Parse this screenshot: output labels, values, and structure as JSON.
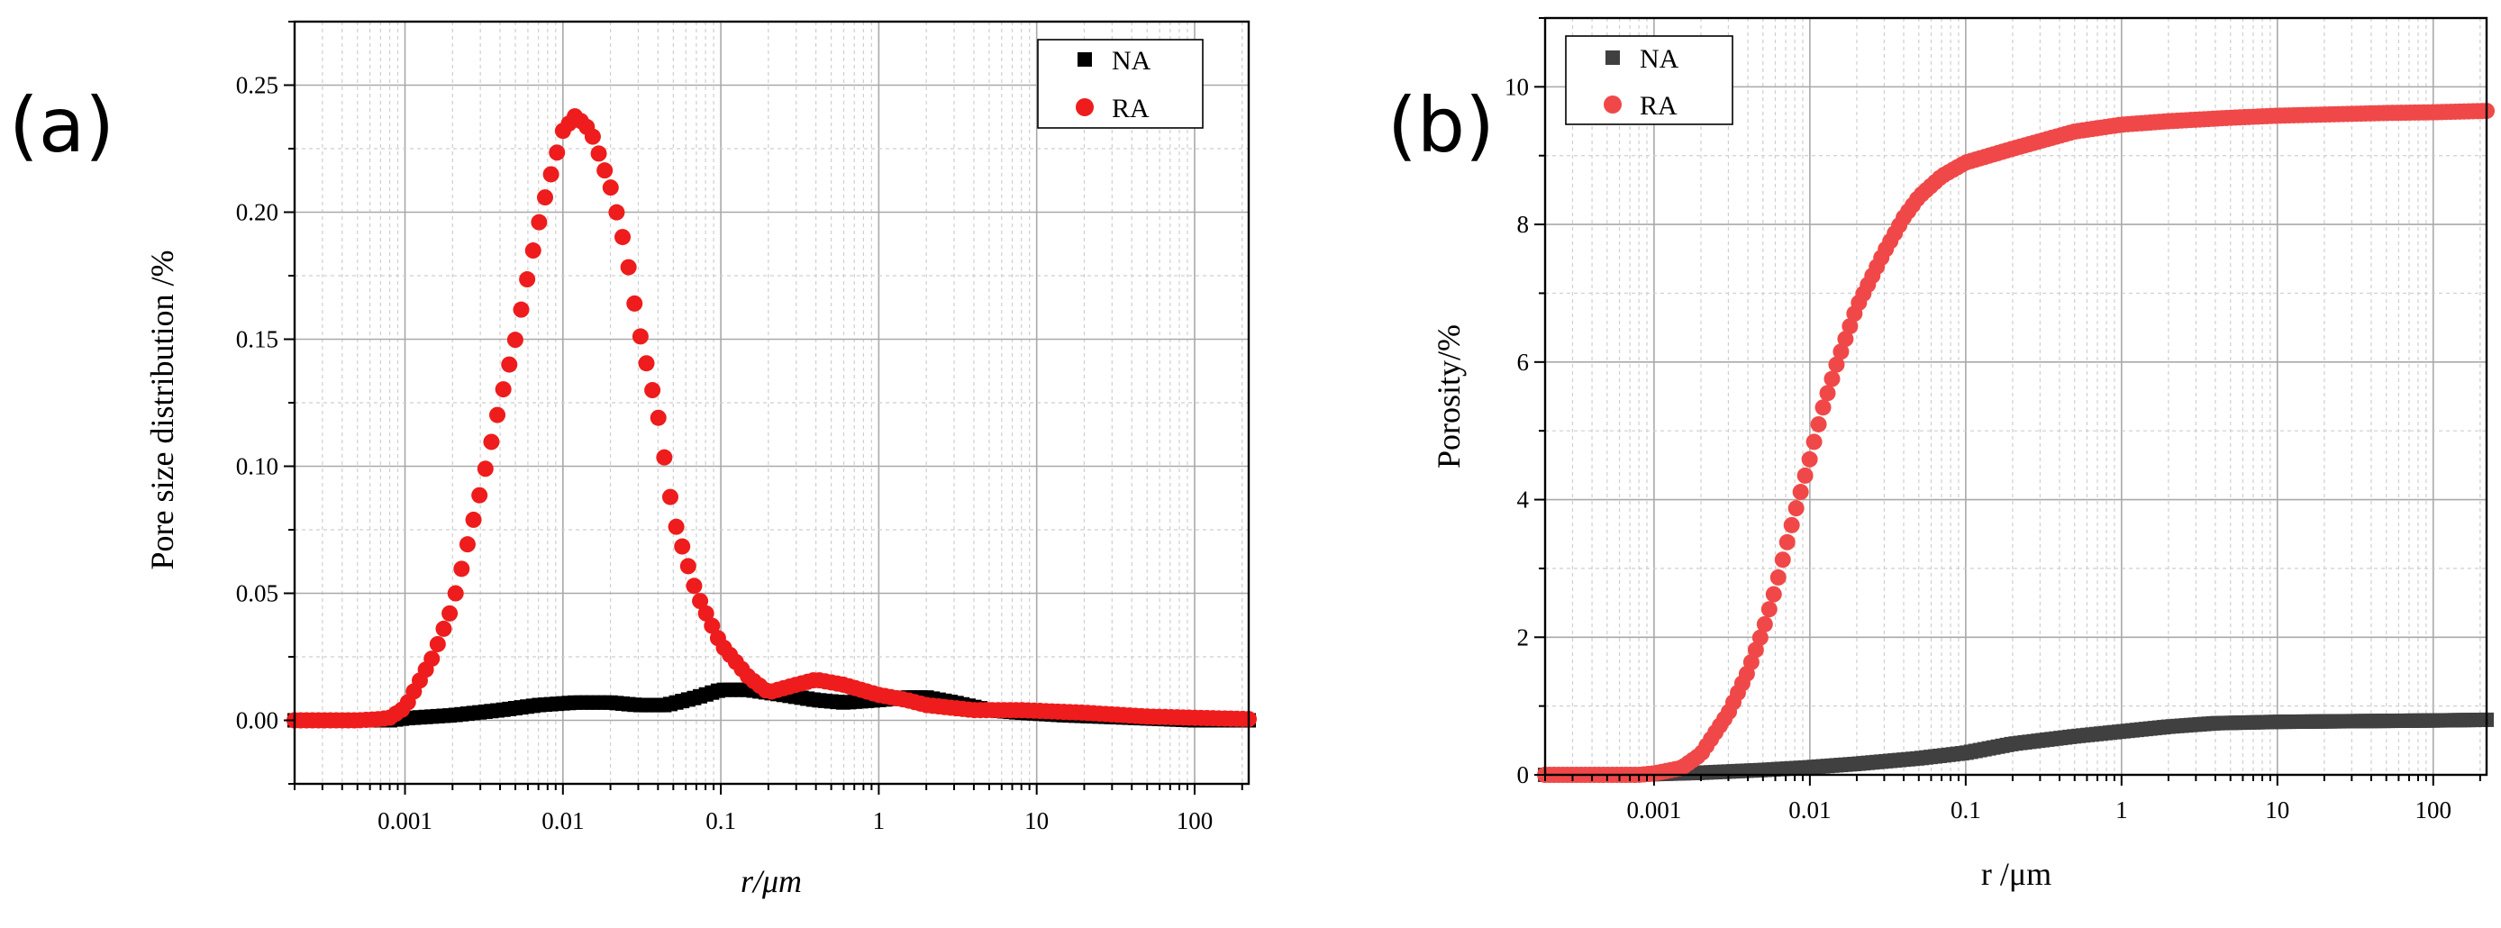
{
  "chart_data": [
    {
      "panel_label": "(a)",
      "type": "scatter",
      "xlabel": "r/μm",
      "ylabel": "Pore size distribution /%",
      "x_scale": "log",
      "xlim": [
        0.0002,
        220
      ],
      "ylim": [
        -0.025,
        0.275
      ],
      "x_ticks": [
        0.001,
        0.01,
        0.1,
        1,
        10,
        100
      ],
      "x_tick_labels": [
        "0.001",
        "0.01",
        "0.1",
        "1",
        "10",
        "100"
      ],
      "y_ticks": [
        0,
        0.05,
        0.1,
        0.15,
        0.2,
        0.25
      ],
      "y_tick_labels": [
        "0.00",
        "0.05",
        "0.10",
        "0.15",
        "0.20",
        "0.25"
      ],
      "grid": true,
      "legend_position": "top-right",
      "series": [
        {
          "name": "NA",
          "marker": "square",
          "color": "#000000",
          "points": [
            [
              0.0002,
              0
            ],
            [
              0.0005,
              0
            ],
            [
              0.0008,
              0
            ],
            [
              0.001,
              0.0008
            ],
            [
              0.002,
              0.002
            ],
            [
              0.004,
              0.004
            ],
            [
              0.007,
              0.006
            ],
            [
              0.012,
              0.007
            ],
            [
              0.02,
              0.007
            ],
            [
              0.03,
              0.006
            ],
            [
              0.045,
              0.006
            ],
            [
              0.07,
              0.009
            ],
            [
              0.1,
              0.012
            ],
            [
              0.15,
              0.012
            ],
            [
              0.25,
              0.01
            ],
            [
              0.4,
              0.008
            ],
            [
              0.6,
              0.007
            ],
            [
              1,
              0.008
            ],
            [
              1.5,
              0.009
            ],
            [
              2,
              0.009
            ],
            [
              3,
              0.007
            ],
            [
              5,
              0.004
            ],
            [
              8,
              0.003
            ],
            [
              15,
              0.002
            ],
            [
              40,
              0.001
            ],
            [
              100,
              0
            ],
            [
              220,
              0
            ]
          ]
        },
        {
          "name": "RA",
          "marker": "circle",
          "color": "#ee1c1c",
          "points": [
            [
              0.0002,
              0
            ],
            [
              0.0005,
              0
            ],
            [
              0.0007,
              0.0005
            ],
            [
              0.0008,
              0.001
            ],
            [
              0.001,
              0.005
            ],
            [
              0.0015,
              0.025
            ],
            [
              0.002,
              0.045
            ],
            [
              0.003,
              0.09
            ],
            [
              0.004,
              0.125
            ],
            [
              0.005,
              0.15
            ],
            [
              0.006,
              0.175
            ],
            [
              0.007,
              0.195
            ],
            [
              0.008,
              0.21
            ],
            [
              0.01,
              0.232
            ],
            [
              0.012,
              0.238
            ],
            [
              0.015,
              0.232
            ],
            [
              0.02,
              0.21
            ],
            [
              0.025,
              0.185
            ],
            [
              0.03,
              0.155
            ],
            [
              0.04,
              0.12
            ],
            [
              0.05,
              0.08
            ],
            [
              0.07,
              0.05
            ],
            [
              0.1,
              0.03
            ],
            [
              0.15,
              0.017
            ],
            [
              0.2,
              0.011
            ],
            [
              0.3,
              0.014
            ],
            [
              0.4,
              0.016
            ],
            [
              0.6,
              0.014
            ],
            [
              1,
              0.01
            ],
            [
              1.5,
              0.008
            ],
            [
              2,
              0.006
            ],
            [
              4,
              0.004
            ],
            [
              8,
              0.004
            ],
            [
              20,
              0.003
            ],
            [
              50,
              0.0015
            ],
            [
              100,
              0.001
            ],
            [
              220,
              0.0005
            ]
          ]
        }
      ]
    },
    {
      "panel_label": "(b)",
      "type": "scatter",
      "xlabel": "r /μm",
      "ylabel": "Porosity/%",
      "x_scale": "log",
      "xlim": [
        0.0002,
        220
      ],
      "ylim": [
        0,
        11
      ],
      "x_ticks": [
        0.001,
        0.01,
        0.1,
        1,
        10,
        100
      ],
      "x_tick_labels": [
        "0.001",
        "0.01",
        "0.1",
        "1",
        "10",
        "100"
      ],
      "y_ticks": [
        0,
        2,
        4,
        6,
        8,
        10
      ],
      "y_tick_labels": [
        "0",
        "2",
        "4",
        "6",
        "8",
        "10"
      ],
      "grid": true,
      "legend_position": "top-left",
      "series": [
        {
          "name": "NA",
          "marker": "square",
          "color": "#404040",
          "points": [
            [
              0.0002,
              0
            ],
            [
              0.0008,
              0
            ],
            [
              0.001,
              0.01
            ],
            [
              0.002,
              0.03
            ],
            [
              0.005,
              0.07
            ],
            [
              0.01,
              0.11
            ],
            [
              0.02,
              0.16
            ],
            [
              0.05,
              0.24
            ],
            [
              0.1,
              0.32
            ],
            [
              0.2,
              0.45
            ],
            [
              0.5,
              0.56
            ],
            [
              1,
              0.63
            ],
            [
              2,
              0.7
            ],
            [
              4,
              0.75
            ],
            [
              10,
              0.77
            ],
            [
              30,
              0.78
            ],
            [
              100,
              0.79
            ],
            [
              220,
              0.8
            ]
          ]
        },
        {
          "name": "RA",
          "marker": "circle",
          "color": "#f04848",
          "points": [
            [
              0.0002,
              0
            ],
            [
              0.0008,
              0
            ],
            [
              0.001,
              0.02
            ],
            [
              0.0015,
              0.1
            ],
            [
              0.002,
              0.3
            ],
            [
              0.003,
              0.9
            ],
            [
              0.004,
              1.5
            ],
            [
              0.005,
              2.1
            ],
            [
              0.006,
              2.7
            ],
            [
              0.007,
              3.3
            ],
            [
              0.008,
              3.8
            ],
            [
              0.01,
              4.6
            ],
            [
              0.012,
              5.3
            ],
            [
              0.015,
              6.0
            ],
            [
              0.02,
              6.8
            ],
            [
              0.03,
              7.6
            ],
            [
              0.04,
              8.1
            ],
            [
              0.05,
              8.4
            ],
            [
              0.07,
              8.7
            ],
            [
              0.1,
              8.9
            ],
            [
              0.2,
              9.1
            ],
            [
              0.5,
              9.35
            ],
            [
              1,
              9.45
            ],
            [
              2,
              9.5
            ],
            [
              5,
              9.55
            ],
            [
              10,
              9.58
            ],
            [
              50,
              9.62
            ],
            [
              100,
              9.63
            ],
            [
              220,
              9.65
            ]
          ]
        }
      ]
    }
  ]
}
